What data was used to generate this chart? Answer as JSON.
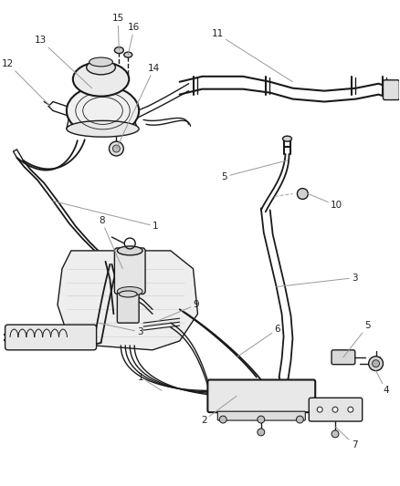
{
  "background_color": "#ffffff",
  "line_color": "#1a1a1a",
  "label_color": "#222222",
  "leader_color": "#999999",
  "figsize": [
    4.38,
    5.33
  ],
  "dpi": 100,
  "font_size": 7.5
}
